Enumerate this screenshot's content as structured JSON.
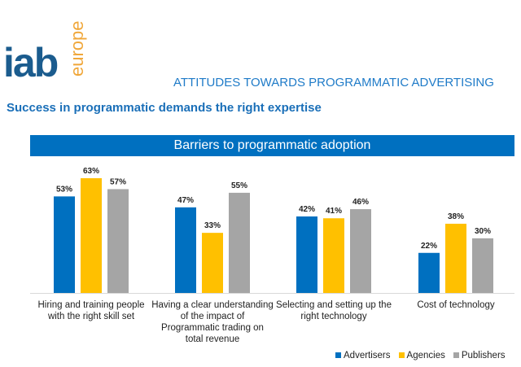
{
  "logo": {
    "text": "iab",
    "subtext": "europe",
    "colors": {
      "iab": "#1b5c8e",
      "accent": "#f0a73a"
    }
  },
  "header": {
    "title": "ATTITUDES TOWARDS PROGRAMMATIC ADVERTISING",
    "subtitle": "Success in programmatic demands the right expertise"
  },
  "chart_data": {
    "type": "bar",
    "title": "Barriers to programmatic adoption",
    "categories": [
      "Hiring and training people with the right skill set",
      "Having a clear understanding of the impact of Programmatic trading on total revenue",
      "Selecting and setting up the right technology",
      "Cost of technology"
    ],
    "series": [
      {
        "name": "Advertisers",
        "color": "#0070c0",
        "values": [
          53,
          47,
          42,
          22
        ]
      },
      {
        "name": "Agencies",
        "color": "#ffc000",
        "values": [
          63,
          33,
          41,
          38
        ]
      },
      {
        "name": "Publishers",
        "color": "#a5a5a5",
        "values": [
          57,
          55,
          46,
          30
        ]
      }
    ],
    "value_format": "%",
    "ylim": [
      0,
      63
    ],
    "grid": false,
    "legend": "bottom-right"
  }
}
